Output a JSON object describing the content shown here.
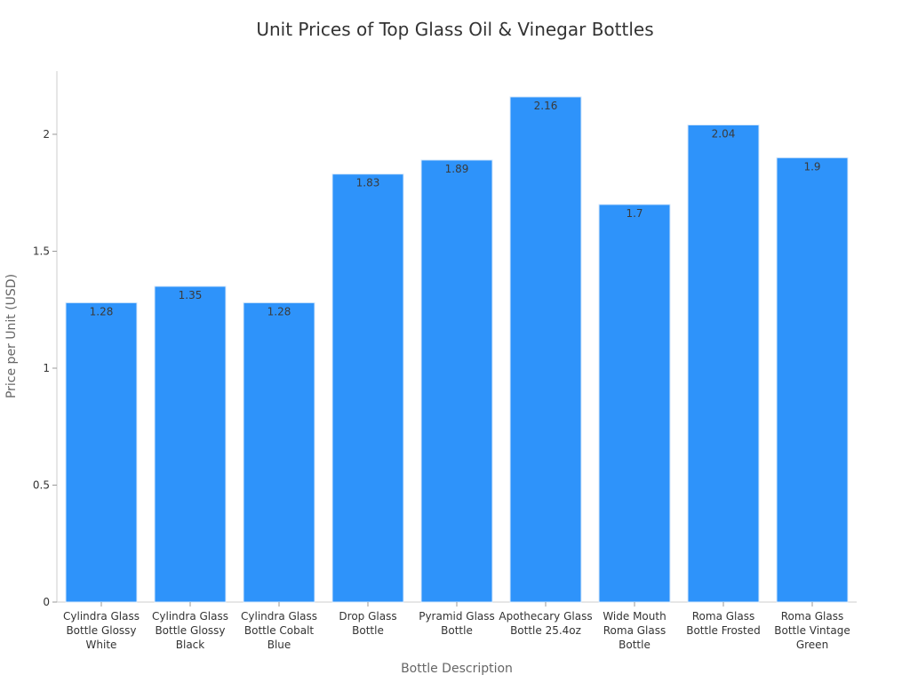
{
  "chart_data": {
    "type": "bar",
    "title": "Unit Prices of Top Glass Oil & Vinegar Bottles",
    "xlabel": "Bottle Description",
    "ylabel": "Price per Unit (USD)",
    "ylim": [
      0,
      2.27
    ],
    "yticks": [
      "0",
      "0.5",
      "1",
      "1.5",
      "2"
    ],
    "ytick_values": [
      0,
      0.5,
      1,
      1.5,
      2
    ],
    "grid": false,
    "bar_color": "#2e93fa",
    "categories": [
      [
        "Cylindra Glass",
        "Bottle Glossy",
        "White"
      ],
      [
        "Cylindra Glass",
        "Bottle Glossy",
        "Black"
      ],
      [
        "Cylindra Glass",
        "Bottle Cobalt",
        "Blue"
      ],
      [
        "Drop Glass",
        "Bottle"
      ],
      [
        "Pyramid Glass",
        "Bottle"
      ],
      [
        "Apothecary Glass",
        "Bottle 25.4oz"
      ],
      [
        "Wide Mouth",
        "Roma Glass",
        "Bottle"
      ],
      [
        "Roma Glass",
        "Bottle Frosted"
      ],
      [
        "Roma Glass",
        "Bottle Vintage",
        "Green"
      ]
    ],
    "values": [
      1.28,
      1.35,
      1.28,
      1.83,
      1.89,
      2.16,
      1.7,
      2.04,
      1.9
    ],
    "data_labels": [
      "1.28",
      "1.35",
      "1.28",
      "1.83",
      "1.89",
      "2.16",
      "1.7",
      "2.04",
      "1.9"
    ]
  }
}
